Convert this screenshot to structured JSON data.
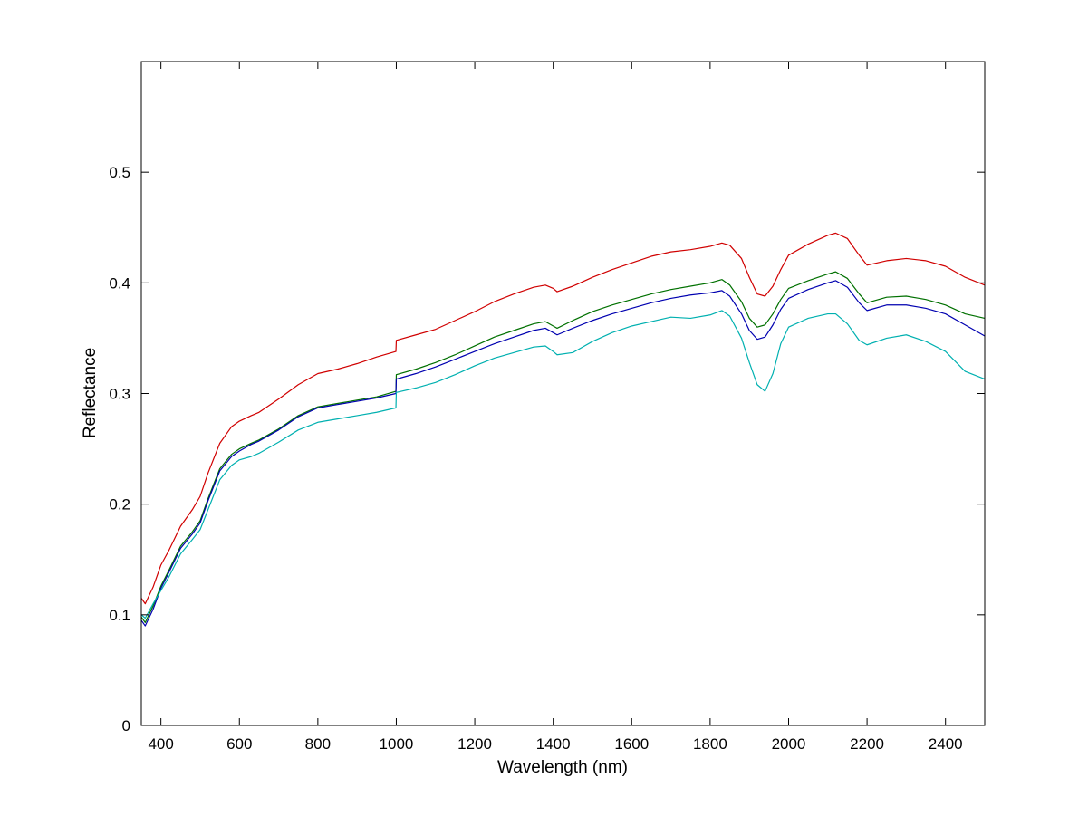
{
  "chart_data": {
    "type": "line",
    "title": "",
    "xlabel": "Wavelength (nm)",
    "ylabel": "Reflectance",
    "xlim": [
      350,
      2500
    ],
    "ylim": [
      0,
      0.6
    ],
    "xticks": [
      400,
      600,
      800,
      1000,
      1200,
      1400,
      1600,
      1800,
      2000,
      2200,
      2400
    ],
    "yticks": [
      0,
      0.1,
      0.2,
      0.3,
      0.4,
      0.5
    ],
    "xtick_labels": [
      "400",
      "600",
      "800",
      "1000",
      "1200",
      "1400",
      "1600",
      "1800",
      "2000",
      "2200",
      "2400"
    ],
    "ytick_labels": [
      "0",
      "0.1",
      "0.2",
      "0.3",
      "0.4",
      "0.5"
    ],
    "grid": false,
    "legend": "none",
    "series": [
      {
        "color": "#d00000",
        "x": [
          350,
          360,
          380,
          400,
          420,
          450,
          480,
          500,
          520,
          550,
          580,
          600,
          630,
          650,
          700,
          750,
          800,
          850,
          900,
          950,
          999,
          1000,
          1050,
          1100,
          1150,
          1200,
          1250,
          1300,
          1350,
          1380,
          1400,
          1410,
          1450,
          1500,
          1550,
          1600,
          1650,
          1700,
          1750,
          1800,
          1830,
          1850,
          1880,
          1900,
          1920,
          1940,
          1960,
          1980,
          2000,
          2050,
          2100,
          2120,
          2150,
          2180,
          2200,
          2250,
          2300,
          2350,
          2400,
          2450,
          2500
        ],
        "y": [
          0.115,
          0.11,
          0.125,
          0.145,
          0.158,
          0.18,
          0.195,
          0.207,
          0.228,
          0.255,
          0.27,
          0.275,
          0.28,
          0.283,
          0.295,
          0.308,
          0.318,
          0.322,
          0.327,
          0.333,
          0.338,
          0.348,
          0.353,
          0.358,
          0.366,
          0.374,
          0.383,
          0.39,
          0.396,
          0.398,
          0.395,
          0.392,
          0.397,
          0.405,
          0.412,
          0.418,
          0.424,
          0.428,
          0.43,
          0.433,
          0.436,
          0.434,
          0.422,
          0.405,
          0.39,
          0.388,
          0.397,
          0.412,
          0.425,
          0.435,
          0.443,
          0.445,
          0.44,
          0.425,
          0.416,
          0.42,
          0.422,
          0.42,
          0.415,
          0.405,
          0.398
        ]
      },
      {
        "color": "#007000",
        "x": [
          350,
          360,
          380,
          400,
          420,
          450,
          480,
          500,
          520,
          550,
          580,
          600,
          630,
          650,
          700,
          750,
          800,
          850,
          900,
          950,
          999,
          1000,
          1050,
          1100,
          1150,
          1200,
          1250,
          1300,
          1350,
          1380,
          1400,
          1410,
          1450,
          1500,
          1550,
          1600,
          1650,
          1700,
          1750,
          1800,
          1830,
          1850,
          1880,
          1900,
          1920,
          1940,
          1960,
          1980,
          2000,
          2050,
          2100,
          2120,
          2150,
          2180,
          2200,
          2250,
          2300,
          2350,
          2400,
          2450,
          2500
        ],
        "y": [
          0.098,
          0.093,
          0.108,
          0.126,
          0.14,
          0.162,
          0.175,
          0.185,
          0.205,
          0.232,
          0.245,
          0.25,
          0.255,
          0.258,
          0.268,
          0.28,
          0.288,
          0.291,
          0.294,
          0.297,
          0.302,
          0.317,
          0.322,
          0.328,
          0.335,
          0.343,
          0.351,
          0.357,
          0.363,
          0.365,
          0.361,
          0.359,
          0.366,
          0.374,
          0.38,
          0.385,
          0.39,
          0.394,
          0.397,
          0.4,
          0.403,
          0.398,
          0.383,
          0.368,
          0.36,
          0.362,
          0.372,
          0.385,
          0.395,
          0.402,
          0.408,
          0.41,
          0.404,
          0.39,
          0.382,
          0.387,
          0.388,
          0.385,
          0.38,
          0.372,
          0.368
        ]
      },
      {
        "color": "#0000b0",
        "x": [
          350,
          360,
          380,
          400,
          420,
          450,
          480,
          500,
          520,
          550,
          580,
          600,
          630,
          650,
          700,
          750,
          800,
          850,
          900,
          950,
          999,
          1000,
          1050,
          1100,
          1150,
          1200,
          1250,
          1300,
          1350,
          1380,
          1400,
          1410,
          1450,
          1500,
          1550,
          1600,
          1650,
          1700,
          1750,
          1800,
          1830,
          1850,
          1880,
          1900,
          1920,
          1940,
          1960,
          1980,
          2000,
          2050,
          2100,
          2120,
          2150,
          2180,
          2200,
          2250,
          2300,
          2350,
          2400,
          2450,
          2500
        ],
        "y": [
          0.095,
          0.09,
          0.105,
          0.124,
          0.138,
          0.16,
          0.173,
          0.183,
          0.203,
          0.23,
          0.243,
          0.248,
          0.254,
          0.257,
          0.267,
          0.279,
          0.287,
          0.29,
          0.293,
          0.296,
          0.3,
          0.313,
          0.318,
          0.324,
          0.331,
          0.338,
          0.345,
          0.351,
          0.357,
          0.359,
          0.355,
          0.353,
          0.359,
          0.366,
          0.372,
          0.377,
          0.382,
          0.386,
          0.389,
          0.391,
          0.393,
          0.388,
          0.372,
          0.357,
          0.349,
          0.351,
          0.362,
          0.376,
          0.386,
          0.394,
          0.4,
          0.402,
          0.396,
          0.382,
          0.375,
          0.38,
          0.38,
          0.377,
          0.372,
          0.362,
          0.352
        ]
      },
      {
        "color": "#00b0b0",
        "x": [
          350,
          360,
          380,
          400,
          420,
          450,
          480,
          500,
          520,
          550,
          580,
          600,
          630,
          650,
          700,
          750,
          800,
          850,
          900,
          950,
          999,
          1000,
          1050,
          1100,
          1150,
          1200,
          1250,
          1300,
          1350,
          1380,
          1400,
          1410,
          1450,
          1500,
          1550,
          1600,
          1650,
          1700,
          1750,
          1800,
          1830,
          1850,
          1880,
          1900,
          1920,
          1940,
          1960,
          1980,
          2000,
          2050,
          2100,
          2120,
          2150,
          2180,
          2200,
          2250,
          2300,
          2350,
          2400,
          2450,
          2500
        ],
        "y": [
          0.1,
          0.097,
          0.11,
          0.122,
          0.134,
          0.155,
          0.168,
          0.177,
          0.195,
          0.222,
          0.235,
          0.24,
          0.243,
          0.246,
          0.256,
          0.267,
          0.274,
          0.277,
          0.28,
          0.283,
          0.287,
          0.301,
          0.305,
          0.31,
          0.317,
          0.325,
          0.332,
          0.337,
          0.342,
          0.343,
          0.338,
          0.335,
          0.337,
          0.347,
          0.355,
          0.361,
          0.365,
          0.369,
          0.368,
          0.371,
          0.375,
          0.37,
          0.35,
          0.328,
          0.308,
          0.302,
          0.318,
          0.345,
          0.36,
          0.368,
          0.372,
          0.372,
          0.363,
          0.348,
          0.344,
          0.35,
          0.353,
          0.347,
          0.338,
          0.32,
          0.313
        ]
      }
    ]
  }
}
